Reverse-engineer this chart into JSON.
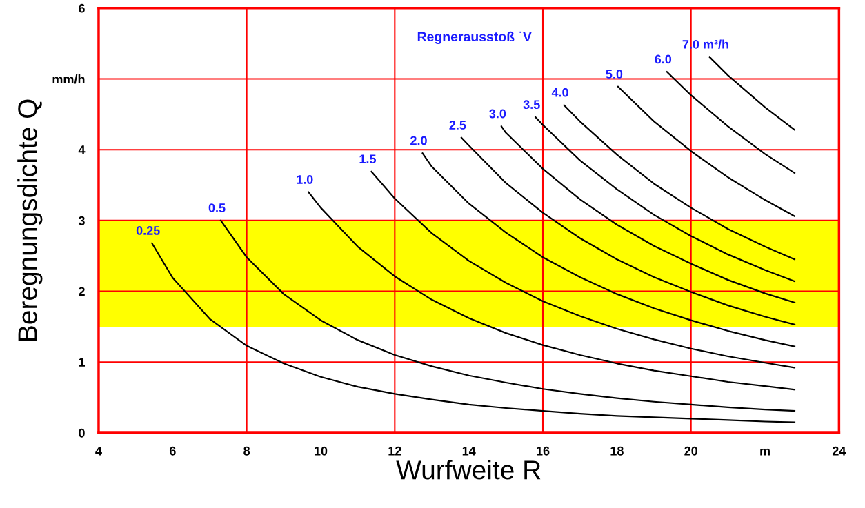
{
  "chart_data": {
    "type": "line",
    "xlabel": "Wurfweite R",
    "ylabel": "Beregnungsdichte Q",
    "annotations": [
      "Regnerausstoß ˙V"
    ],
    "xlim": [
      4,
      24
    ],
    "ylim": [
      0,
      6
    ],
    "xticks": [
      4,
      6,
      8,
      10,
      12,
      14,
      16,
      18,
      20,
      {
        "value": 22,
        "label": "m"
      },
      24
    ],
    "yticks": [
      0,
      1,
      2,
      3,
      4,
      {
        "value": 5,
        "label": "mm/h"
      },
      6
    ],
    "grid": false,
    "marker": "none",
    "line_style": "solid",
    "bands": [
      {
        "axis": "y",
        "from": 1.5,
        "to": 3,
        "color": "#ffff00"
      }
    ],
    "ref_lines": [
      {
        "axis": "x",
        "value": 8,
        "color": "#ff0000"
      },
      {
        "axis": "x",
        "value": 12,
        "color": "#ff0000"
      },
      {
        "axis": "x",
        "value": 16,
        "color": "#ff0000"
      },
      {
        "axis": "x",
        "value": 20,
        "color": "#ff0000"
      },
      {
        "axis": "y",
        "value": 1,
        "color": "#ff0000"
      },
      {
        "axis": "y",
        "value": 2,
        "color": "#ff0000"
      },
      {
        "axis": "y",
        "value": 3,
        "color": "#ff0000"
      },
      {
        "axis": "y",
        "value": 4,
        "color": "#ff0000"
      },
      {
        "axis": "y",
        "value": 5,
        "color": "#ff0000"
      }
    ],
    "series": [
      {
        "name": "0.25",
        "color": "#000000",
        "x": [
          5.44,
          6,
          7,
          8,
          9,
          10,
          11,
          12,
          13,
          14,
          15,
          16,
          17,
          18,
          19,
          20,
          21,
          22,
          22.8
        ],
        "values": [
          2.68,
          2.19,
          1.61,
          1.23,
          0.98,
          0.79,
          0.65,
          0.55,
          0.47,
          0.4,
          0.35,
          0.31,
          0.27,
          0.24,
          0.22,
          0.2,
          0.18,
          0.16,
          0.15
        ]
      },
      {
        "name": "0.5",
        "color": "#000000",
        "x": [
          7.3,
          8,
          9,
          10,
          11,
          12,
          13,
          14,
          15,
          16,
          17,
          18,
          19,
          20,
          21,
          22,
          22.8
        ],
        "values": [
          3.0,
          2.48,
          1.96,
          1.59,
          1.31,
          1.1,
          0.94,
          0.81,
          0.71,
          0.62,
          0.55,
          0.49,
          0.44,
          0.4,
          0.36,
          0.33,
          0.31
        ]
      },
      {
        "name": "1.0",
        "color": "#000000",
        "x": [
          9.67,
          10,
          11,
          12,
          13,
          14,
          15,
          16,
          17,
          18,
          19,
          20,
          21,
          22,
          22.8
        ],
        "values": [
          3.4,
          3.18,
          2.63,
          2.21,
          1.88,
          1.62,
          1.41,
          1.24,
          1.1,
          0.98,
          0.88,
          0.8,
          0.72,
          0.66,
          0.61
        ]
      },
      {
        "name": "1.5",
        "color": "#000000",
        "x": [
          11.37,
          12,
          13,
          14,
          15,
          16,
          17,
          18,
          19,
          20,
          21,
          22,
          22.8
        ],
        "values": [
          3.69,
          3.31,
          2.82,
          2.43,
          2.12,
          1.86,
          1.65,
          1.47,
          1.32,
          1.19,
          1.08,
          0.99,
          0.92
        ]
      },
      {
        "name": "2.0",
        "color": "#000000",
        "x": [
          12.75,
          13,
          14,
          15,
          16,
          17,
          18,
          19,
          20,
          21,
          22,
          22.8
        ],
        "values": [
          3.95,
          3.76,
          3.24,
          2.83,
          2.48,
          2.2,
          1.96,
          1.76,
          1.59,
          1.44,
          1.31,
          1.22
        ]
      },
      {
        "name": "2.5",
        "color": "#000000",
        "x": [
          13.8,
          14,
          15,
          16,
          17,
          18,
          19,
          20,
          21,
          22,
          22.8
        ],
        "values": [
          4.17,
          4.06,
          3.53,
          3.11,
          2.75,
          2.45,
          2.2,
          1.99,
          1.8,
          1.64,
          1.53
        ]
      },
      {
        "name": "3.0",
        "color": "#000000",
        "x": [
          14.88,
          15,
          16,
          17,
          18,
          19,
          20,
          21,
          22,
          22.8
        ],
        "values": [
          4.33,
          4.24,
          3.73,
          3.3,
          2.94,
          2.64,
          2.39,
          2.16,
          1.97,
          1.84
        ]
      },
      {
        "name": "3.5",
        "color": "#000000",
        "x": [
          15.8,
          16,
          17,
          18,
          19,
          20,
          21,
          22,
          22.8
        ],
        "values": [
          4.46,
          4.35,
          3.85,
          3.44,
          3.08,
          2.78,
          2.52,
          2.3,
          2.14
        ]
      },
      {
        "name": "4.0",
        "color": "#000000",
        "x": [
          16.57,
          17,
          18,
          19,
          20,
          21,
          22,
          22.8
        ],
        "values": [
          4.63,
          4.4,
          3.93,
          3.52,
          3.18,
          2.88,
          2.63,
          2.45
        ]
      },
      {
        "name": "5.0",
        "color": "#000000",
        "x": [
          18.03,
          19,
          20,
          21,
          22,
          22.8
        ],
        "values": [
          4.89,
          4.4,
          3.98,
          3.61,
          3.29,
          3.06
        ]
      },
      {
        "name": "6.0",
        "color": "#000000",
        "x": [
          19.35,
          20,
          21,
          22,
          22.8
        ],
        "values": [
          5.1,
          4.77,
          4.33,
          3.94,
          3.67
        ]
      },
      {
        "name": "7.0 m³/h",
        "color": "#000000",
        "x": [
          20.5,
          21,
          22,
          22.8
        ],
        "values": [
          5.31,
          5.05,
          4.6,
          4.28
        ]
      }
    ]
  }
}
